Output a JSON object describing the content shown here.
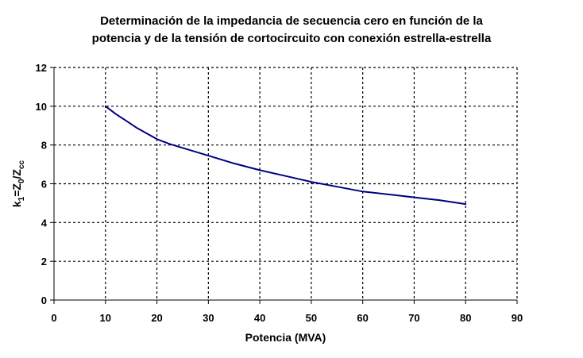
{
  "chart_data": {
    "type": "line",
    "title": [
      "Determinación de la impedancia de secuencia cero en función de la",
      "potencia y de la tensión de cortocircuito con conexión estrella-estrella"
    ],
    "xlabel": "Potencia (MVA)",
    "ylabel": {
      "parts": [
        "k",
        "1",
        "=Z",
        "0",
        "/Z",
        "cc"
      ]
    },
    "xlim": [
      0,
      90
    ],
    "ylim": [
      0,
      12
    ],
    "xticks": [
      0,
      10,
      20,
      30,
      40,
      50,
      60,
      70,
      80,
      90
    ],
    "yticks": [
      0,
      2,
      4,
      6,
      8,
      10,
      12
    ],
    "grid": true,
    "legend": "none",
    "colors": {
      "series": "#000080",
      "grid": "#000000",
      "axis": "#000000"
    },
    "series": [
      {
        "x": [
          10,
          12,
          14,
          16,
          18,
          20,
          22.5,
          25,
          30,
          35,
          40,
          45,
          50,
          55,
          60,
          65,
          70,
          75,
          80
        ],
        "values": [
          10.0,
          9.6,
          9.25,
          8.9,
          8.6,
          8.3,
          8.05,
          7.85,
          7.45,
          7.05,
          6.7,
          6.4,
          6.1,
          5.85,
          5.6,
          5.45,
          5.3,
          5.15,
          4.95
        ]
      }
    ]
  }
}
